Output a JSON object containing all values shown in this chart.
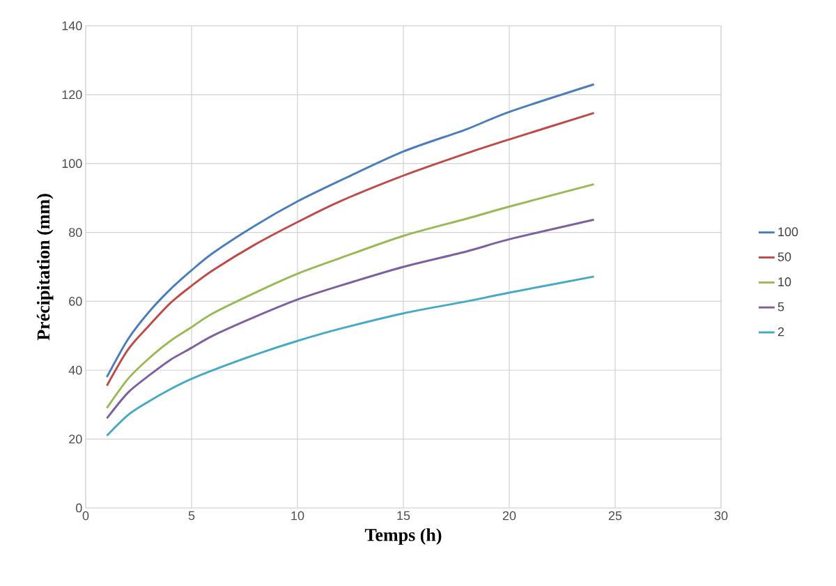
{
  "chart_data": {
    "type": "line",
    "xlabel": "Temps (h)",
    "ylabel": "Précipitation (mm)",
    "x": [
      1,
      2,
      3,
      4,
      5,
      6,
      8,
      10,
      12,
      15,
      18,
      20,
      24
    ],
    "series": [
      {
        "name": "100",
        "color": "#4a7ebb",
        "values": [
          38,
          49,
          57,
          63.5,
          69,
          74,
          82,
          89,
          95,
          103.5,
          110,
          115,
          123
        ]
      },
      {
        "name": "50",
        "color": "#be4b48",
        "values": [
          35.5,
          46,
          53,
          59.5,
          64.5,
          69,
          76.5,
          83,
          89,
          96.5,
          103,
          107,
          114.7
        ]
      },
      {
        "name": "10",
        "color": "#98b954",
        "values": [
          29,
          37.5,
          43.5,
          48.5,
          52.5,
          56.5,
          62.5,
          68,
          72.5,
          79,
          84,
          87.5,
          94
        ]
      },
      {
        "name": "5",
        "color": "#7d60a0",
        "values": [
          26,
          33.5,
          38.5,
          43,
          46.5,
          50,
          55.5,
          60.5,
          64.5,
          70,
          74.5,
          78,
          83.7
        ]
      },
      {
        "name": "2",
        "color": "#46aac5",
        "values": [
          21,
          27,
          31,
          34.5,
          37.5,
          40,
          44.5,
          48.5,
          52,
          56.5,
          60,
          62.5,
          67.2
        ]
      }
    ],
    "xlim": [
      0,
      30
    ],
    "xticks": [
      0,
      5,
      10,
      15,
      20,
      25,
      30
    ],
    "ylim": [
      0,
      140
    ],
    "yticks": [
      0,
      20,
      40,
      60,
      80,
      100,
      120,
      140
    ],
    "grid": true,
    "legend": "right",
    "marker": "none",
    "line_style": "solid"
  }
}
